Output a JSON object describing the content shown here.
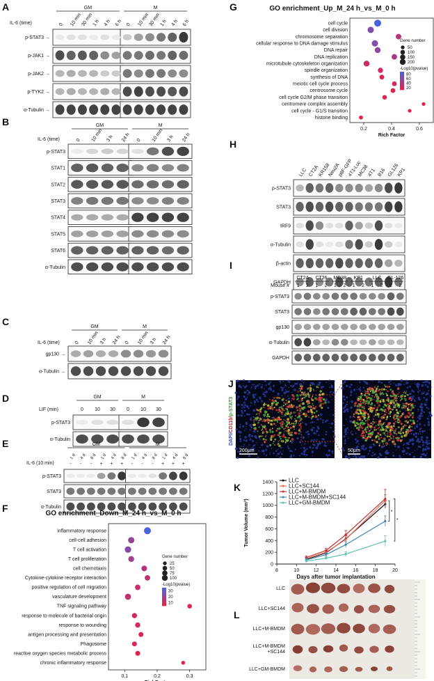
{
  "panels": {
    "A": {
      "letter": "A",
      "groups": [
        "GM",
        "M"
      ],
      "treatment": "IL-6 (time)",
      "lanes": [
        "0",
        "10 min",
        "30 min",
        "1 h",
        "4 h",
        "6 h",
        "0",
        "10 min",
        "30 min",
        "1 h",
        "4 h",
        "6 h"
      ],
      "rows": [
        {
          "label": "p-STAT3",
          "arrow": true,
          "i": [
            0.05,
            0.1,
            0.1,
            0.05,
            0.1,
            0.05,
            0.2,
            0.4,
            0.5,
            0.6,
            0.7,
            0.9
          ]
        },
        {
          "label": "p-JAK1",
          "arrow": true,
          "i": [
            0.8,
            0.7,
            0.75,
            0.7,
            0.5,
            0.4,
            0.6,
            0.6,
            0.65,
            0.6,
            0.7,
            0.65
          ]
        },
        {
          "label": "p-JAK2",
          "arrow": true,
          "i": [
            0.3,
            0.35,
            0.3,
            0.3,
            0.2,
            0.2,
            0.6,
            0.5,
            0.6,
            0.6,
            0.5,
            0.5
          ]
        },
        {
          "label": "p-TYK2",
          "arrow": true,
          "i": [
            0.3,
            0.35,
            0.3,
            0.3,
            0.35,
            0.3,
            0.8,
            0.85,
            0.8,
            0.8,
            0.75,
            0.8
          ]
        },
        {
          "label": "α-Tubulin",
          "arrow": true,
          "i": [
            0.85,
            0.85,
            0.85,
            0.85,
            0.85,
            0.85,
            0.85,
            0.85,
            0.85,
            0.85,
            0.85,
            0.85
          ]
        }
      ]
    },
    "B": {
      "letter": "B",
      "groups": [
        "GM",
        "M"
      ],
      "treatment": "IL-6 (time)",
      "lanes": [
        "0",
        "10 min",
        "3 h",
        "24 h",
        "0",
        "10 min",
        "3 h",
        "24 h"
      ],
      "rows": [
        {
          "label": "p-STAT3",
          "i": [
            0.05,
            0.15,
            0.2,
            0.15,
            0.1,
            0.6,
            0.8,
            0.85
          ]
        },
        {
          "label": "STAT1",
          "i": [
            0.7,
            0.75,
            0.7,
            0.7,
            0.5,
            0.55,
            0.5,
            0.55
          ]
        },
        {
          "label": "STAT2",
          "i": [
            0.75,
            0.75,
            0.75,
            0.75,
            0.65,
            0.65,
            0.65,
            0.7
          ]
        },
        {
          "label": "STAT3",
          "i": [
            0.55,
            0.6,
            0.6,
            0.6,
            0.5,
            0.5,
            0.55,
            0.55
          ]
        },
        {
          "label": "STAT4",
          "i": [
            0.35,
            0.35,
            0.35,
            0.35,
            0.85,
            0.85,
            0.85,
            0.85
          ]
        },
        {
          "label": "STAT5",
          "i": [
            0.4,
            0.4,
            0.4,
            0.4,
            0.5,
            0.5,
            0.5,
            0.5
          ]
        },
        {
          "label": "STAT6",
          "i": [
            0.7,
            0.7,
            0.7,
            0.7,
            0.7,
            0.7,
            0.65,
            0.7
          ]
        },
        {
          "label": "α-Tubulin",
          "i": [
            0.8,
            0.8,
            0.8,
            0.8,
            0.8,
            0.8,
            0.8,
            0.8
          ]
        }
      ]
    },
    "C": {
      "letter": "C",
      "groups": [
        "GM",
        "M"
      ],
      "treatment": "IL-6 (time)",
      "lanes": [
        "0",
        "10 min",
        "3 h",
        "24 h",
        "0",
        "10 min",
        "3 h",
        "24 h"
      ],
      "rows": [
        {
          "label": "gp130",
          "arrow": true,
          "i": [
            0.35,
            0.4,
            0.35,
            0.35,
            0.5,
            0.5,
            0.45,
            0.5
          ]
        },
        {
          "label": "α-Tubulin",
          "arrow": true,
          "i": [
            0.8,
            0.8,
            0.8,
            0.8,
            0.8,
            0.8,
            0.8,
            0.8
          ]
        }
      ]
    },
    "D": {
      "letter": "D",
      "groups": [
        "GM",
        "M"
      ],
      "treatment": "LIF (min)",
      "lanes": [
        "0",
        "10",
        "30",
        "0",
        "10",
        "30"
      ],
      "rows": [
        {
          "label": "p-STAT3",
          "i": [
            0.05,
            0.1,
            0.1,
            0.1,
            0.9,
            0.85
          ]
        },
        {
          "label": "α-Tubulin",
          "i": [
            0.8,
            0.8,
            0.8,
            0.8,
            0.8,
            0.8
          ]
        }
      ]
    },
    "E": {
      "letter": "E",
      "groups": [
        "GM",
        "M"
      ],
      "days": [
        "1 d",
        "4 d",
        "8 d",
        "1 d",
        "4 d",
        "8 d",
        "1 d",
        "4 d",
        "8 d",
        "1 d",
        "4 d",
        "8 d"
      ],
      "treatment": "IL-6 (10 min)",
      "signs": [
        "-",
        "-",
        "-",
        "+",
        "+",
        "+",
        "-",
        "-",
        "-",
        "+",
        "+",
        "+"
      ],
      "rows": [
        {
          "label": "p-STAT3",
          "i": [
            0.05,
            0.05,
            0.05,
            0.4,
            0.6,
            0.9,
            0.05,
            0.05,
            0.1,
            0.6,
            0.85,
            0.9
          ]
        },
        {
          "label": "STAT3",
          "i": [
            0.6,
            0.6,
            0.6,
            0.6,
            0.6,
            0.6,
            0.6,
            0.6,
            0.6,
            0.6,
            0.6,
            0.6
          ]
        },
        {
          "label": "α-Tubulin",
          "i": [
            0.8,
            0.8,
            0.8,
            0.8,
            0.8,
            0.8,
            0.8,
            0.8,
            0.8,
            0.8,
            0.8,
            0.8
          ]
        }
      ]
    },
    "H": {
      "letter": "H",
      "lanes": [
        "LLC",
        "CT2A",
        "KR158",
        "Neu2A",
        "p8F-GFP",
        "4T1-Luc",
        "MC38",
        "4T1",
        "B16",
        "GL126",
        "KP1"
      ],
      "rows": [
        {
          "label": "p-STAT3",
          "i": [
            0.3,
            0.7,
            0.6,
            0.7,
            0.5,
            0.5,
            0.5,
            0.4,
            0.5,
            0.8,
            0.9
          ]
        },
        {
          "label": "STAT3",
          "i": [
            0.7,
            0.8,
            0.7,
            0.8,
            0.7,
            0.7,
            0.6,
            0.6,
            0.6,
            0.85,
            0.9
          ]
        },
        {
          "label": "IRF9",
          "i": [
            0.1,
            0.8,
            0.5,
            0.1,
            0.1,
            0.7,
            0.4,
            0.2,
            0.8,
            0.1,
            0.05
          ]
        },
        {
          "label": "α-Tubulin",
          "i": [
            0.1,
            0.85,
            0.1,
            0.05,
            0.1,
            0.6,
            0.8,
            0.2,
            0.9,
            0.2,
            0.05
          ]
        },
        {
          "label": "β-actin",
          "i": [
            0.7,
            0.75,
            0.7,
            0.7,
            0.8,
            0.7,
            0.7,
            0.7,
            0.7,
            0.4,
            0.3
          ]
        },
        {
          "label": "GAPDH",
          "i": [
            0.5,
            0.7,
            0.5,
            0.6,
            0.8,
            0.7,
            0.6,
            0.6,
            0.7,
            0.9,
            0.6
          ]
        }
      ]
    },
    "I": {
      "letter": "I",
      "mouse_label": "Mouse #",
      "models": [
        "CT2A",
        "CT26",
        "MC38",
        "KP1",
        "LLC",
        "GL-126"
      ],
      "mouse_ids": [
        "1",
        "2",
        "1",
        "2",
        "1",
        "2",
        "1",
        "2",
        "1",
        "2",
        "1",
        "2"
      ],
      "rows": [
        {
          "label": "p-STAT3",
          "i": [
            0.5,
            0.6,
            0.5,
            0.5,
            0.6,
            0.6,
            0.6,
            0.5,
            0.5,
            0.5,
            0.7,
            0.6
          ]
        },
        {
          "label": "STAT3",
          "i": [
            0.6,
            0.6,
            0.5,
            0.6,
            0.6,
            0.6,
            0.7,
            0.7,
            0.6,
            0.6,
            0.8,
            0.8
          ]
        },
        {
          "label": "gp130",
          "i": [
            0.4,
            0.4,
            0.4,
            0.4,
            0.4,
            0.4,
            0.4,
            0.4,
            0.4,
            0.4,
            0.4,
            0.4
          ]
        },
        {
          "label": "α-Tubulin",
          "i": [
            0.8,
            0.85,
            0.4,
            0.3,
            0.5,
            0.5,
            0.3,
            0.3,
            0.4,
            0.3,
            0.3,
            0.3
          ]
        },
        {
          "label": "GAPDH",
          "i": [
            0.7,
            0.7,
            0.7,
            0.7,
            0.7,
            0.7,
            0.7,
            0.7,
            0.7,
            0.7,
            0.7,
            0.7
          ]
        }
      ]
    },
    "J": {
      "letter": "J",
      "stain_label": "DAPI/CD11b/p-STAT3",
      "scale_left": "200μm",
      "scale_right": "50μm"
    },
    "L": {
      "letter": "L",
      "groups": [
        "LLC",
        "LLC+SC144",
        "LLC+M-BMDM",
        "LLC+M-BMDM\n+SC144",
        "LLC+GM-BMDM"
      ]
    }
  },
  "chart_data": [
    {
      "id": "F",
      "letter": "F",
      "type": "scatter",
      "title": "GO enrichment_Down_M_24 h_vs_M_0 h",
      "xlabel": "RichFactor",
      "xlim": [
        0.05,
        0.35
      ],
      "xticks": [
        0.1,
        0.2,
        0.3
      ],
      "terms": [
        "inflammatory response",
        "cell-cell adhesion",
        "T cell activation",
        "T cell proliferation",
        "cell chemotaxis",
        "Cytokine-cytokine receptor interaction",
        "positive regulation of cell migration",
        "vasculature development",
        "TNF signaling pathway",
        "response to molecule of bacterial origin",
        "response to wounding",
        "antigen processing and presentation",
        "Phagosome",
        "reactive oxygen species metabolic process",
        "chronic inflammatory response"
      ],
      "x": [
        0.17,
        0.12,
        0.11,
        0.12,
        0.16,
        0.17,
        0.14,
        0.11,
        0.3,
        0.13,
        0.14,
        0.15,
        0.13,
        0.14,
        0.28
      ],
      "size": [
        30,
        22,
        24,
        18,
        16,
        14,
        14,
        20,
        8,
        12,
        12,
        10,
        10,
        10,
        4
      ],
      "pval": [
        30,
        20,
        22,
        18,
        16,
        14,
        13,
        14,
        10,
        11,
        12,
        10,
        10,
        9,
        8
      ],
      "legend_size_title": "Gene number",
      "legend_sizes": [
        25,
        50,
        75,
        100
      ],
      "legend_color_title": "-Log10(pvalue)",
      "legend_color_ticks": [
        30,
        20,
        10
      ]
    },
    {
      "id": "G",
      "letter": "G",
      "type": "scatter",
      "title": "GO enrichment_Up_M_24 h_vs_M_0 h",
      "xlabel": "Rich Factor",
      "xlim": [
        0.1,
        0.7
      ],
      "xticks": [
        0.2,
        0.4,
        0.6
      ],
      "terms": [
        "cell cycle",
        "cell division",
        "chromosome separation",
        "cellular response to DNA damage stimulus",
        "DNA repair",
        "DNA replication",
        "microtubule cytoskeleton organization",
        "spindle organization",
        "synthesis of DNA",
        "meiotic cell cycle process",
        "centrosome cycle",
        "cell cycle G2/M phase transition",
        "centromere complex assembly",
        "cell cycle - G1/S transition",
        "histone binding"
      ],
      "x": [
        0.3,
        0.25,
        0.45,
        0.28,
        0.3,
        0.42,
        0.22,
        0.32,
        0.33,
        0.42,
        0.41,
        0.35,
        0.63,
        0.53,
        0.18
      ],
      "size": [
        200,
        150,
        100,
        150,
        120,
        100,
        120,
        80,
        60,
        60,
        60,
        50,
        20,
        20,
        30
      ],
      "pval": [
        80,
        60,
        40,
        60,
        55,
        45,
        30,
        30,
        25,
        30,
        25,
        25,
        20,
        20,
        20
      ],
      "legend_size_title": "Gene number",
      "legend_sizes": [
        50,
        100,
        150,
        200
      ],
      "legend_color_title": "-Log10(pvalue)",
      "legend_color_ticks": [
        80,
        60,
        40,
        20
      ]
    },
    {
      "id": "K",
      "letter": "K",
      "type": "line",
      "xlabel": "Days after tumor implantation",
      "ylabel": "Tumor Volume (mm³)",
      "xlim": [
        8,
        20
      ],
      "ylim": [
        0,
        1400
      ],
      "xticks": [
        8,
        10,
        12,
        14,
        16,
        18,
        20
      ],
      "yticks": [
        0,
        200,
        400,
        600,
        800,
        1000,
        1200,
        1400
      ],
      "x": [
        11,
        13,
        15,
        19
      ],
      "series": [
        {
          "name": "LLC",
          "color": "#111111",
          "values": [
            80,
            190,
            430,
            1020
          ],
          "err": [
            30,
            40,
            60,
            60
          ]
        },
        {
          "name": "LLC+SC144",
          "color": "#e36a58",
          "values": [
            90,
            200,
            420,
            1080
          ],
          "err": [
            30,
            40,
            60,
            100
          ]
        },
        {
          "name": "LLC+M-BMDM",
          "color": "#c4302b",
          "values": [
            110,
            230,
            500,
            1110
          ],
          "err": [
            30,
            40,
            70,
            160
          ]
        },
        {
          "name": "LLC+M-BMDM+SC144",
          "color": "#3f88b5",
          "values": [
            70,
            160,
            330,
            730
          ],
          "err": [
            25,
            30,
            50,
            90
          ]
        },
        {
          "name": "LLC+GM-BMDM",
          "color": "#5bc2ad",
          "values": [
            50,
            100,
            170,
            390
          ],
          "err": [
            20,
            25,
            40,
            90
          ]
        }
      ],
      "annotations": [
        "*",
        "*"
      ]
    }
  ]
}
